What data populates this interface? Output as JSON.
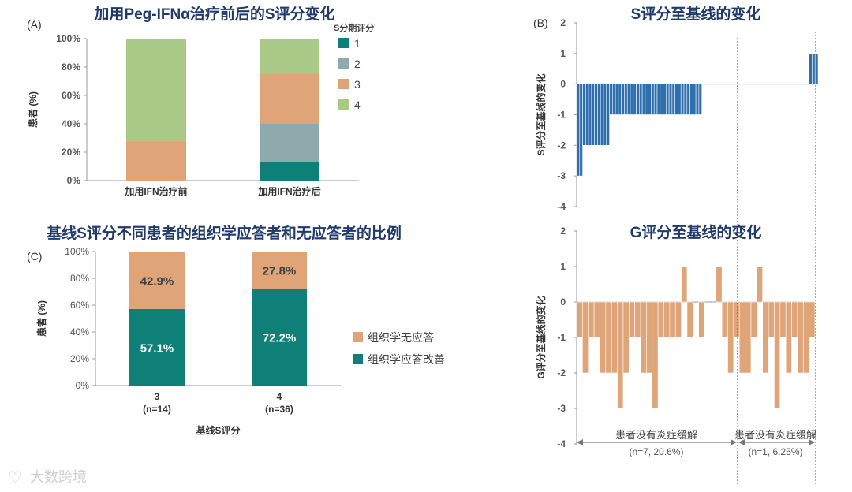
{
  "chart_data": [
    {
      "id": "A",
      "type": "bar",
      "stacked": true,
      "panel_label": "(A)",
      "title": "加用Peg-IFNα治疗前后的S评分变化",
      "ylabel": "患者 (%)",
      "ylim": [
        0,
        100
      ],
      "yticks": [
        "0%",
        "20%",
        "40%",
        "60%",
        "80%",
        "100%"
      ],
      "categories": [
        "加用IFN治疗前",
        "加用IFN治疗后"
      ],
      "legend_title": "S分期评分",
      "series": [
        {
          "name": "1",
          "color": "#0f8078",
          "values": [
            0,
            13
          ]
        },
        {
          "name": "2",
          "color": "#8faaad",
          "values": [
            0,
            27
          ]
        },
        {
          "name": "3",
          "color": "#dfa578",
          "values": [
            28,
            35
          ]
        },
        {
          "name": "4",
          "color": "#a9c986",
          "values": [
            72,
            25
          ]
        }
      ]
    },
    {
      "id": "C",
      "type": "bar",
      "stacked": true,
      "panel_label": "(C)",
      "title": "基线S评分不同患者的组织学应答者和无应答者的比例",
      "ylabel": "患者 (%)",
      "xlabel": "基线S评分",
      "ylim": [
        0,
        100
      ],
      "yticks": [
        "0%",
        "20%",
        "40%",
        "60%",
        "80%",
        "100%"
      ],
      "categories": [
        "3",
        "4"
      ],
      "category_sublabels": [
        "(n=14)",
        "(n=36)"
      ],
      "series": [
        {
          "name": "组织学应答改善",
          "color": "#0f8078",
          "values": [
            57.1,
            72.2
          ],
          "labels": [
            "57.1%",
            "72.2%"
          ],
          "label_color": "#ffffff"
        },
        {
          "name": "组织学无应答",
          "color": "#dfa578",
          "values": [
            42.9,
            27.8
          ],
          "labels": [
            "42.9%",
            "27.8%"
          ],
          "label_color": "#404040"
        }
      ]
    },
    {
      "id": "B_S",
      "type": "bar",
      "subtype": "waterfall",
      "panel_label": "(B)",
      "title": "S评分至基线的变化",
      "ylabel": "S评分至基线的变化",
      "ylim": [
        -4,
        2
      ],
      "yticks": [
        "-4",
        "-3",
        "-2",
        "-1",
        "0",
        "1",
        "2"
      ],
      "color": "#2f6fae",
      "values": [
        -3,
        -3,
        -2,
        -2,
        -2,
        -2,
        -2,
        -2,
        -2,
        -2,
        -2,
        -1,
        -1,
        -1,
        -1,
        -1,
        -1,
        -1,
        -1,
        -1,
        -1,
        -1,
        -1,
        -1,
        -1,
        -1,
        -1,
        -1,
        -1,
        -1,
        -1,
        -1,
        -1,
        -1,
        -1,
        -1,
        -1,
        -1,
        -1,
        -1,
        -1,
        -1,
        0,
        0,
        0,
        0,
        0,
        0,
        0,
        0,
        0,
        0,
        0,
        0,
        0,
        0,
        0,
        0,
        0,
        0,
        0,
        0,
        0,
        0,
        0,
        0,
        0,
        0,
        0,
        0,
        0,
        0,
        0,
        0,
        0,
        0,
        0,
        0,
        1,
        1,
        1
      ]
    },
    {
      "id": "B_G",
      "type": "bar",
      "subtype": "waterfall",
      "title": "G评分至基线的变化",
      "ylabel": "G评分至基线的变化",
      "ylim": [
        -4,
        2
      ],
      "yticks": [
        "-4",
        "-3",
        "-2",
        "-1",
        "0",
        "1",
        "2"
      ],
      "color": "#dfa578",
      "values": [
        -1,
        -2,
        -1,
        -1,
        -2,
        -2,
        -2,
        -3,
        -2,
        -1,
        -1,
        -2,
        -2,
        -3,
        -1,
        -1,
        -1,
        -1,
        1,
        -1,
        0,
        -1,
        0,
        0,
        1,
        -1,
        -2,
        -1,
        -2,
        -2,
        -1,
        1,
        -2,
        -1,
        -3,
        -1,
        -2,
        -1,
        -2,
        -2,
        -1
      ],
      "annotations": [
        {
          "text": "患者没有炎症缓解",
          "sub": "(n=7, 20.6%)"
        },
        {
          "text": "患者没有炎症缓解",
          "sub": "(n=1, 6.25%)"
        }
      ]
    }
  ],
  "watermark": "大数跨境"
}
